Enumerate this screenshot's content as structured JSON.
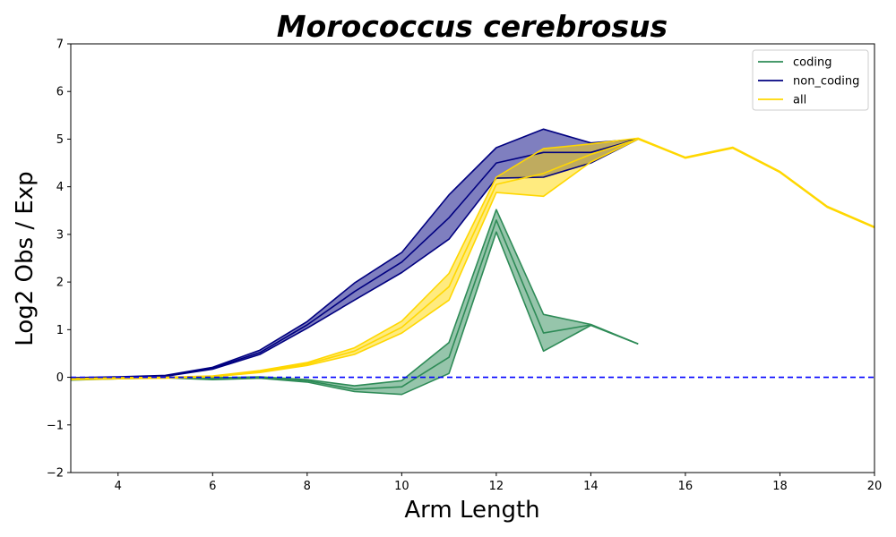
{
  "chart_data": {
    "type": "line",
    "title": "Morococcus cerebrosus",
    "xlabel": "Arm Length",
    "ylabel": "Log2 Obs / Exp",
    "xlim": [
      3,
      20
    ],
    "ylim": [
      -2,
      7
    ],
    "x_ticks": [
      4,
      6,
      8,
      10,
      12,
      14,
      16,
      18,
      20
    ],
    "y_ticks": [
      -2,
      -1,
      0,
      1,
      2,
      3,
      4,
      5,
      6,
      7
    ],
    "x_tick_labels": [
      "4",
      "6",
      "8",
      "10",
      "12",
      "14",
      "16",
      "18",
      "20"
    ],
    "y_tick_labels": [
      "−2",
      "−1",
      "0",
      "1",
      "2",
      "3",
      "4",
      "5",
      "6",
      "7"
    ],
    "grid": false,
    "legend_position": "upper right",
    "reference_line": {
      "y": 0,
      "color": "#0000ff",
      "style": "dashed"
    },
    "series": [
      {
        "name": "coding",
        "color": "#2e8b57",
        "x": [
          3,
          4,
          5,
          6,
          7,
          8,
          9,
          10,
          11,
          12,
          13,
          14,
          15
        ],
        "mean": [
          -0.05,
          -0.02,
          0.0,
          -0.03,
          0.0,
          -0.07,
          -0.25,
          -0.2,
          0.42,
          3.3,
          0.93,
          1.1,
          0.7
        ],
        "lower": [
          -0.06,
          -0.03,
          -0.01,
          -0.05,
          -0.02,
          -0.1,
          -0.3,
          -0.36,
          0.08,
          3.05,
          0.55,
          1.09,
          0.7
        ],
        "upper": [
          -0.04,
          -0.01,
          0.01,
          -0.01,
          0.01,
          -0.05,
          -0.18,
          -0.07,
          0.73,
          3.52,
          1.32,
          1.11,
          0.7
        ]
      },
      {
        "name": "non_coding",
        "color": "#000080",
        "x": [
          3,
          4,
          5,
          6,
          7,
          8,
          9,
          10,
          11,
          12,
          13,
          14,
          15
        ],
        "mean": [
          -0.02,
          0.0,
          0.03,
          0.19,
          0.52,
          1.1,
          1.8,
          2.42,
          3.35,
          4.5,
          4.72,
          4.72,
          5.0
        ],
        "lower": [
          -0.03,
          -0.01,
          0.02,
          0.17,
          0.48,
          1.03,
          1.62,
          2.2,
          2.9,
          4.18,
          4.2,
          4.5,
          5.0
        ],
        "upper": [
          -0.01,
          0.01,
          0.04,
          0.21,
          0.57,
          1.17,
          1.98,
          2.62,
          3.83,
          4.82,
          5.21,
          4.92,
          5.0
        ]
      },
      {
        "name": "all",
        "color": "#ffd700",
        "x": [
          3,
          4,
          5,
          6,
          7,
          8,
          9,
          10,
          11,
          12,
          13,
          14,
          15,
          16,
          17,
          18,
          19,
          20
        ],
        "mean": [
          -0.04,
          -0.02,
          -0.01,
          0.02,
          0.12,
          0.28,
          0.55,
          1.05,
          1.9,
          4.05,
          4.28,
          4.68,
          5.0,
          4.61,
          4.82,
          4.31,
          3.58,
          3.15
        ],
        "lower": [
          -0.05,
          -0.03,
          -0.02,
          0.01,
          0.1,
          0.25,
          0.48,
          0.93,
          1.62,
          3.88,
          3.8,
          4.52,
          5.0,
          4.6,
          4.81,
          4.3,
          3.57,
          3.14
        ],
        "upper": [
          -0.03,
          -0.01,
          0.0,
          0.03,
          0.14,
          0.31,
          0.62,
          1.18,
          2.18,
          4.2,
          4.8,
          4.9,
          5.02,
          4.62,
          4.83,
          4.32,
          3.59,
          3.16
        ]
      }
    ]
  }
}
